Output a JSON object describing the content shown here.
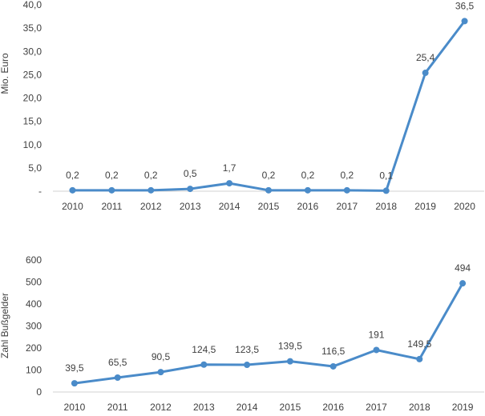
{
  "colors": {
    "line": "#4A8BC9",
    "axis": "#d0d0d0",
    "text": "#404040"
  },
  "chart_data": [
    {
      "type": "line",
      "title": "",
      "xlabel": "",
      "ylabel": "Mio. Euro",
      "ylim": [
        0,
        40
      ],
      "yticks": [
        0,
        5,
        10,
        15,
        20,
        25,
        30,
        35,
        40
      ],
      "ytick_labels": [
        "-",
        "5,0",
        "10,0",
        "15,0",
        "20,0",
        "25,0",
        "30,0",
        "35,0",
        "40,0"
      ],
      "grid": false,
      "categories": [
        "2010",
        "2011",
        "2012",
        "2013",
        "2014",
        "2015",
        "2016",
        "2017",
        "2018",
        "2019",
        "2020"
      ],
      "series": [
        {
          "values": [
            0.2,
            0.2,
            0.2,
            0.5,
            1.7,
            0.2,
            0.2,
            0.2,
            0.1,
            25.4,
            36.5
          ],
          "labels": [
            "0,2",
            "0,2",
            "0,2",
            "0,5",
            "1,7",
            "0,2",
            "0,2",
            "0,2",
            "0,1",
            "25,4",
            "36,5"
          ]
        }
      ]
    },
    {
      "type": "line",
      "title": "",
      "xlabel": "",
      "ylabel": "Zahl Bußgelder",
      "ylim": [
        0,
        600
      ],
      "yticks": [
        0,
        100,
        200,
        300,
        400,
        500,
        600
      ],
      "ytick_labels": [
        "0",
        "100",
        "200",
        "300",
        "400",
        "500",
        "600"
      ],
      "grid": false,
      "categories": [
        "2010",
        "2011",
        "2012",
        "2013",
        "2014",
        "2015",
        "2016",
        "2017",
        "2018",
        "2019"
      ],
      "series": [
        {
          "values": [
            39.5,
            65.5,
            90.5,
            124.5,
            123.5,
            139.5,
            116.5,
            191,
            149.5,
            494
          ],
          "labels": [
            "39,5",
            "65,5",
            "90,5",
            "124,5",
            "123,5",
            "139,5",
            "116,5",
            "191",
            "149,5",
            "494"
          ]
        }
      ]
    }
  ]
}
